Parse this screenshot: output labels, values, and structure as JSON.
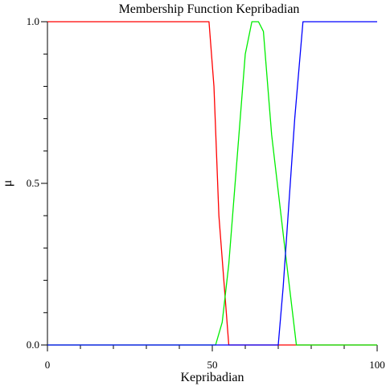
{
  "chart_data": {
    "type": "line",
    "title": "Membership Function Kepribadian",
    "xlabel": "Kepribadian",
    "ylabel": "μ",
    "xlim": [
      0,
      100
    ],
    "ylim": [
      0,
      1
    ],
    "x_ticks": [
      {
        "value": 0,
        "label": "0"
      },
      {
        "value": 50,
        "label": "50"
      },
      {
        "value": 100,
        "label": "100"
      }
    ],
    "x_minor_ticks": [
      10,
      20,
      30,
      40,
      60,
      70,
      80,
      90
    ],
    "y_ticks": [
      {
        "value": 0,
        "label": "0.0"
      },
      {
        "value": 0.5,
        "label": "0.5"
      },
      {
        "value": 1,
        "label": "1.0"
      }
    ],
    "y_minor_ticks": [
      0.1,
      0.2,
      0.3,
      0.4,
      0.6,
      0.7,
      0.8,
      0.9
    ],
    "grid": false,
    "series": [
      {
        "color": "#ff0000",
        "points": [
          [
            0,
            1
          ],
          [
            49,
            1
          ],
          [
            50.5,
            0.8
          ],
          [
            52,
            0.4
          ],
          [
            53.5,
            0.2
          ],
          [
            55,
            0
          ],
          [
            100,
            0
          ]
        ]
      },
      {
        "color": "#00ee00",
        "points": [
          [
            0,
            0
          ],
          [
            51,
            0
          ],
          [
            53,
            0.07
          ],
          [
            55,
            0.25
          ],
          [
            60,
            0.9
          ],
          [
            62,
            1
          ],
          [
            64,
            1
          ],
          [
            65.5,
            0.97
          ],
          [
            68,
            0.65
          ],
          [
            72,
            0.3
          ],
          [
            75.5,
            0
          ],
          [
            100,
            0
          ]
        ]
      },
      {
        "color": "#0000ff",
        "points": [
          [
            0,
            0
          ],
          [
            70,
            0
          ],
          [
            71.5,
            0.18
          ],
          [
            75,
            0.7
          ],
          [
            77.5,
            1
          ],
          [
            100,
            1
          ]
        ]
      }
    ]
  }
}
